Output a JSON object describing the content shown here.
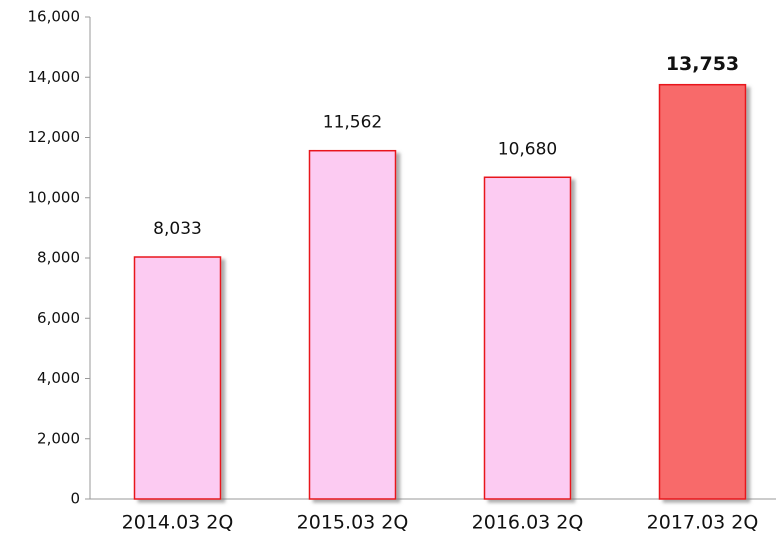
{
  "chart_data": {
    "type": "bar",
    "categories": [
      "2014.03 2Q",
      "2015.03 2Q",
      "2016.03 2Q",
      "2017.03 2Q"
    ],
    "values": [
      8033,
      11562,
      10680,
      13753
    ],
    "value_labels": [
      "8,033",
      "11,562",
      "10,680",
      "13,753"
    ],
    "colors": [
      "#fccbf2",
      "#fccbf2",
      "#fccbf2",
      "#f86a6a"
    ],
    "edge_color": "#e8141c",
    "highlight_index": 3,
    "ylim": [
      0,
      16000
    ],
    "yticks": [
      0,
      {
        "value": 2000,
        "label": "2,000"
      },
      {
        "value": 4000,
        "label": "4,000"
      },
      {
        "value": 6000,
        "label": "6,000"
      },
      {
        "value": 8000,
        "label": "8,000"
      },
      {
        "value": 10000,
        "label": "10,000"
      },
      {
        "value": 12000,
        "label": "12,000"
      },
      {
        "value": 14000,
        "label": "14,000"
      },
      {
        "value": 16000,
        "label": "16,000"
      }
    ],
    "grid": false
  }
}
